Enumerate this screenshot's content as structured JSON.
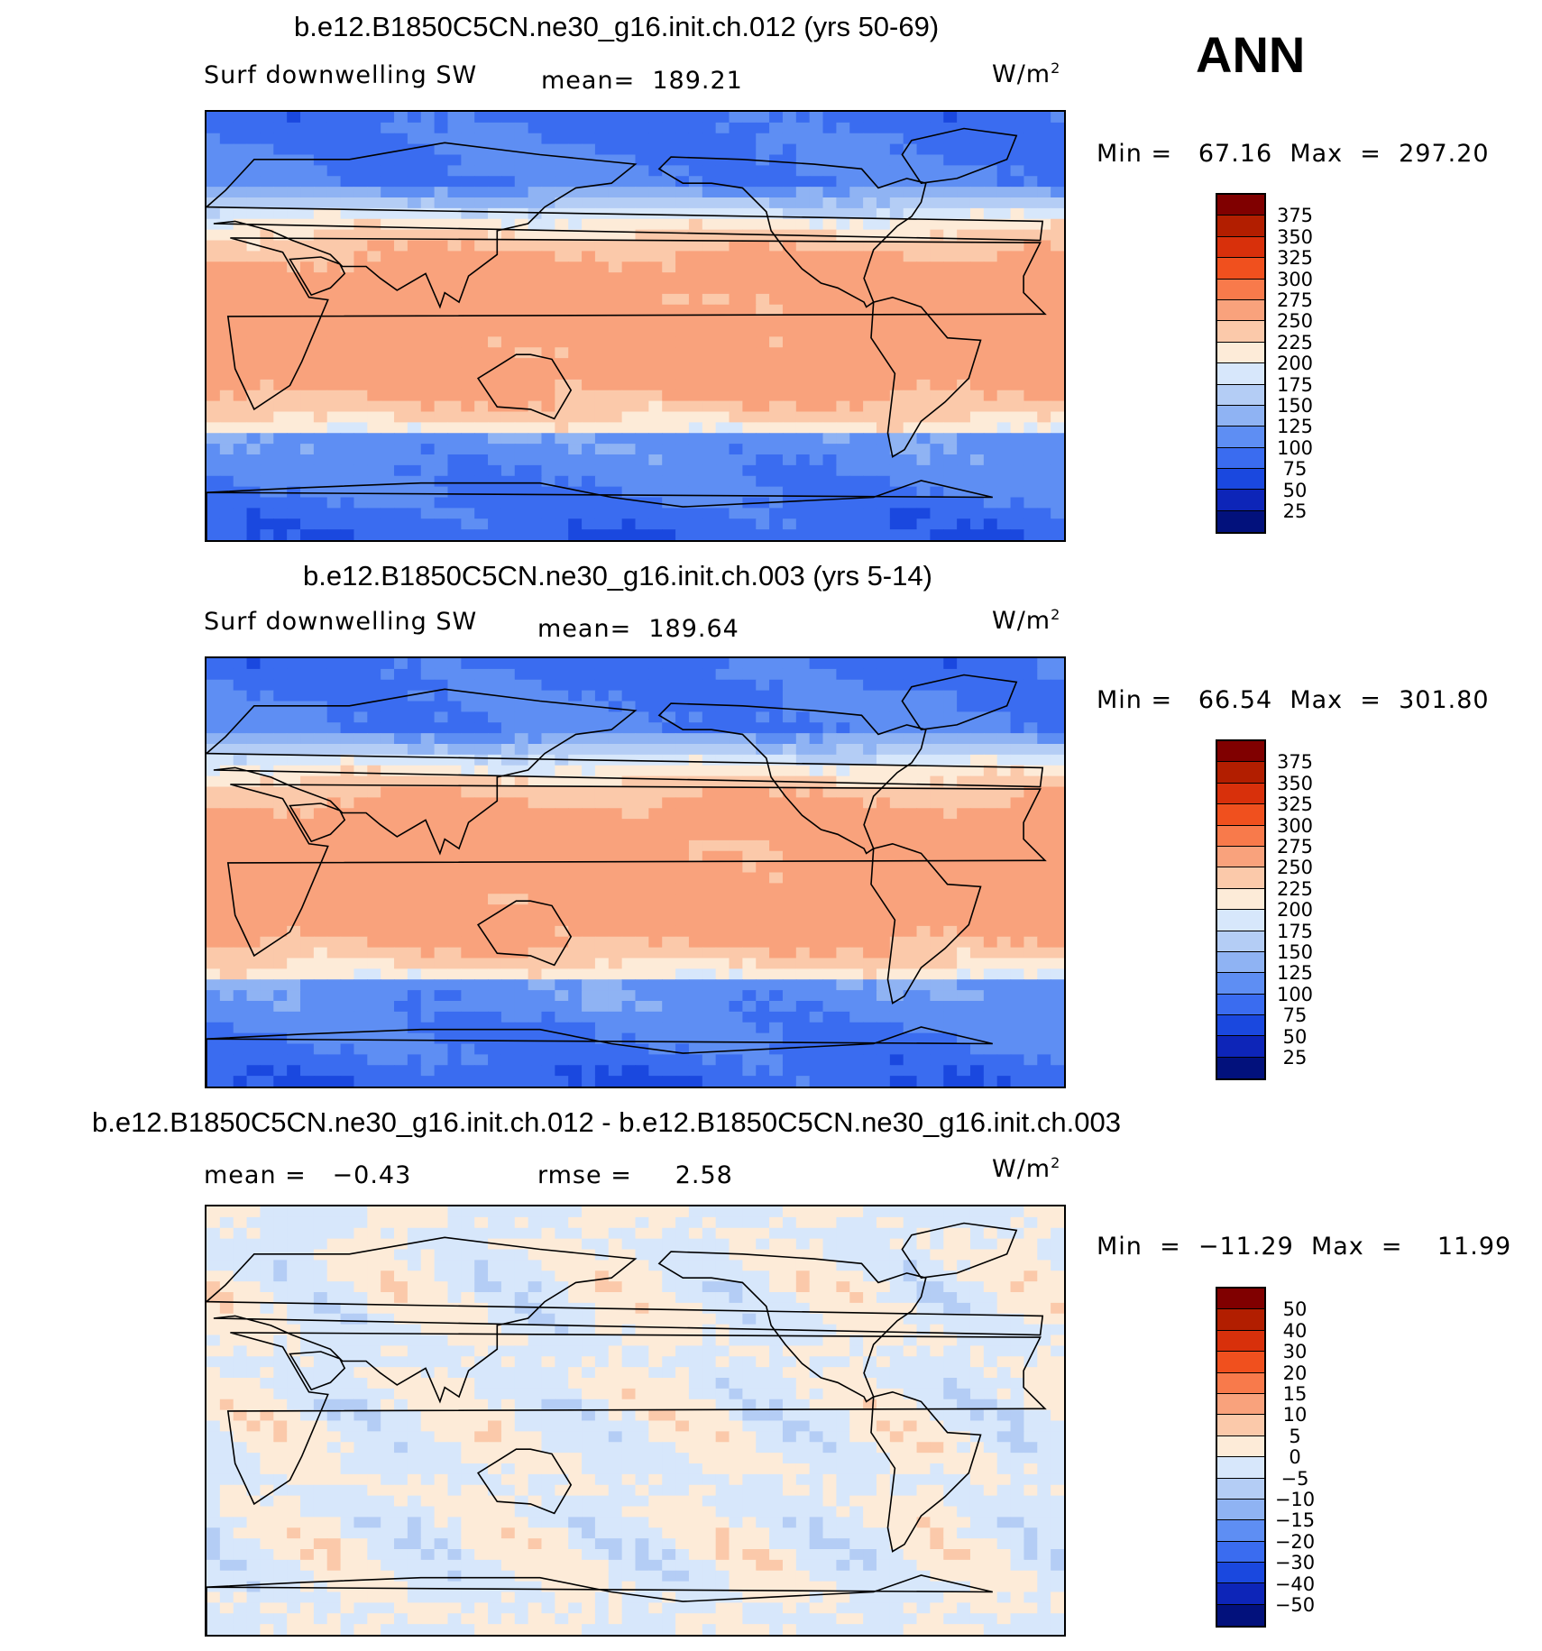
{
  "season": "ANN",
  "units_label": "W/m",
  "units_sup": "2",
  "panels": [
    {
      "title": "b.e12.B1850C5CN.ne30_g16.init.ch.012 (yrs 50-69)",
      "variable": "Surf downwelling SW",
      "stat_text": "mean=  189.21",
      "minmax_text": "Min =   67.16  Max  =  297.20",
      "colorbar": {
        "labels": [
          "375",
          "350",
          "325",
          "300",
          "275",
          "250",
          "225",
          "200",
          "175",
          "150",
          "125",
          "100",
          "75",
          "50",
          "25"
        ],
        "colors": [
          "#800000",
          "#b21e00",
          "#d8300b",
          "#f0501e",
          "#f87a4b",
          "#f9a27c",
          "#fbc9aa",
          "#fdebd8",
          "#d7e7fb",
          "#b4cdf5",
          "#8fb3f3",
          "#5e8ef3",
          "#3a6cf0",
          "#1a48df",
          "#0d25b8",
          "#02117c"
        ]
      },
      "map_palette": [
        "#0d25b8",
        "#1a48df",
        "#3a6cf0",
        "#5e8ef3",
        "#8fb3f3",
        "#b4cdf5",
        "#d7e7fb",
        "#fdebd8",
        "#fbc9aa",
        "#f9a27c"
      ]
    },
    {
      "title": "b.e12.B1850C5CN.ne30_g16.init.ch.003 (yrs 5-14)",
      "variable": "Surf downwelling SW",
      "stat_text": "mean=  189.64",
      "minmax_text": "Min =   66.54  Max  =  301.80",
      "colorbar": {
        "labels": [
          "375",
          "350",
          "325",
          "300",
          "275",
          "250",
          "225",
          "200",
          "175",
          "150",
          "125",
          "100",
          "75",
          "50",
          "25"
        ],
        "colors": [
          "#800000",
          "#b21e00",
          "#d8300b",
          "#f0501e",
          "#f87a4b",
          "#f9a27c",
          "#fbc9aa",
          "#fdebd8",
          "#d7e7fb",
          "#b4cdf5",
          "#8fb3f3",
          "#5e8ef3",
          "#3a6cf0",
          "#1a48df",
          "#0d25b8",
          "#02117c"
        ]
      },
      "map_palette": [
        "#0d25b8",
        "#1a48df",
        "#3a6cf0",
        "#5e8ef3",
        "#8fb3f3",
        "#b4cdf5",
        "#d7e7fb",
        "#fdebd8",
        "#fbc9aa",
        "#f9a27c"
      ]
    },
    {
      "title": "b.e12.B1850C5CN.ne30_g16.init.ch.012 - b.e12.B1850C5CN.ne30_g16.init.ch.003",
      "mean_text": "mean =   −0.43",
      "rmse_text": "rmse =     2.58",
      "minmax_text": "Min  =  −11.29  Max  =    11.99",
      "colorbar": {
        "labels": [
          "50",
          "40",
          "30",
          "20",
          "15",
          "10",
          "5",
          "0",
          "−5",
          "−10",
          "−15",
          "−20",
          "−30",
          "−40",
          "−50"
        ],
        "colors": [
          "#800000",
          "#b21e00",
          "#d8300b",
          "#f0501e",
          "#f87a4b",
          "#f9a27c",
          "#fbc9aa",
          "#fdebd8",
          "#d7e7fb",
          "#b4cdf5",
          "#8fb3f3",
          "#5e8ef3",
          "#3a6cf0",
          "#1a48df",
          "#0d25b8",
          "#02117c"
        ]
      },
      "map_palette": [
        "#8fb3f3",
        "#b4cdf5",
        "#d7e7fb",
        "#fdebd8",
        "#fbc9aa",
        "#f9a27c"
      ]
    }
  ]
}
